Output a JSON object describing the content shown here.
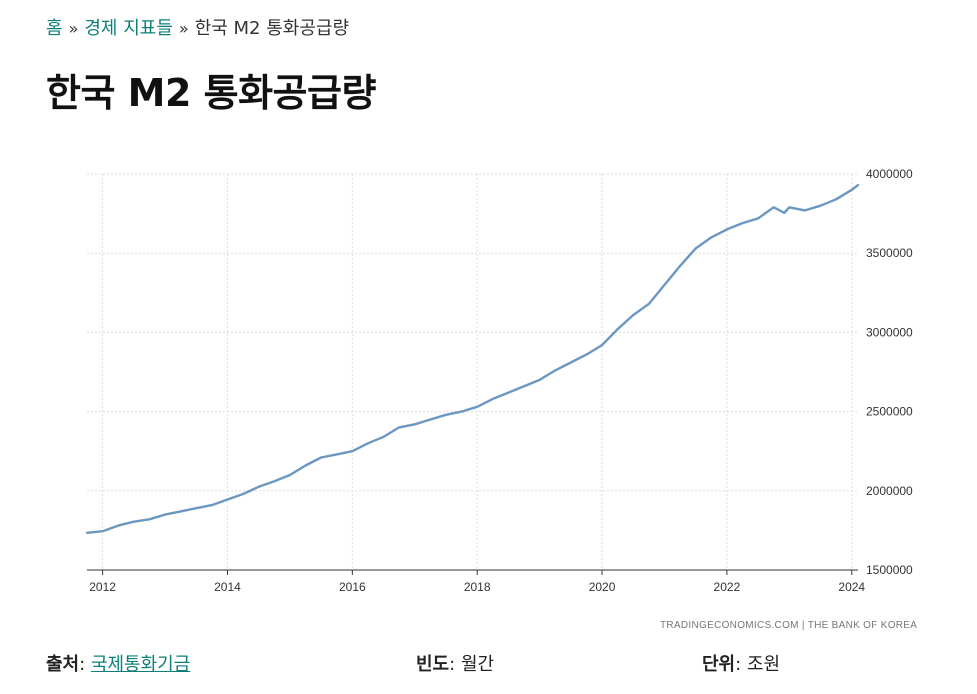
{
  "breadcrumb": {
    "home": "홈",
    "separator": "»",
    "category": "경제 지표들",
    "current": "한국 M2 통화공급량"
  },
  "page_title": "한국 M2 통화공급량",
  "credit": {
    "provider": "TRADINGECONOMICS.COM",
    "divider": "|",
    "source": "THE BANK OF KOREA"
  },
  "meta": {
    "source_label": "출처",
    "source_value": "국제통화기금",
    "frequency_label": "빈도",
    "frequency_value": "월간",
    "unit_label": "단위",
    "unit_value": "조원",
    "colon": ":"
  },
  "colors": {
    "line": "#6b97c0",
    "grid": "#dddddd",
    "link": "#0d7f78"
  },
  "chart_data": {
    "type": "line",
    "title": "",
    "xlabel": "",
    "ylabel": "",
    "grid": true,
    "y_axis_side": "right",
    "xlim": [
      2011.75,
      2024.1
    ],
    "ylim": [
      1500000,
      4000000
    ],
    "x_ticks": [
      {
        "value": 2012,
        "label": "2012"
      },
      {
        "value": 2014,
        "label": "2014"
      },
      {
        "value": 2016,
        "label": "2016"
      },
      {
        "value": 2018,
        "label": "2018"
      },
      {
        "value": 2020,
        "label": "2020"
      },
      {
        "value": 2022,
        "label": "2022"
      },
      {
        "value": 2024,
        "label": "2024"
      }
    ],
    "y_ticks": [
      {
        "value": 1500000,
        "label": "1500000"
      },
      {
        "value": 2000000,
        "label": "2000000"
      },
      {
        "value": 2500000,
        "label": "2500000"
      },
      {
        "value": 3000000,
        "label": "3000000"
      },
      {
        "value": 3500000,
        "label": "3500000"
      },
      {
        "value": 4000000,
        "label": "4000000"
      }
    ],
    "series": [
      {
        "x": [
          2011.75,
          2012.0,
          2012.25,
          2012.5,
          2012.75,
          2013.0,
          2013.25,
          2013.5,
          2013.75,
          2014.0,
          2014.25,
          2014.5,
          2014.75,
          2015.0,
          2015.25,
          2015.5,
          2015.75,
          2016.0,
          2016.25,
          2016.5,
          2016.75,
          2017.0,
          2017.25,
          2017.5,
          2017.75,
          2018.0,
          2018.25,
          2018.5,
          2018.75,
          2019.0,
          2019.25,
          2019.5,
          2019.75,
          2020.0,
          2020.25,
          2020.5,
          2020.75,
          2021.0,
          2021.25,
          2021.5,
          2021.75,
          2022.0,
          2022.25,
          2022.5,
          2022.75,
          2022.92,
          2023.0,
          2023.25,
          2023.5,
          2023.75,
          2024.0,
          2024.1
        ],
        "values": [
          1735000,
          1745000,
          1780000,
          1805000,
          1820000,
          1850000,
          1870000,
          1890000,
          1910000,
          1945000,
          1980000,
          2025000,
          2060000,
          2100000,
          2160000,
          2210000,
          2230000,
          2250000,
          2300000,
          2340000,
          2400000,
          2420000,
          2450000,
          2480000,
          2500000,
          2530000,
          2580000,
          2620000,
          2660000,
          2700000,
          2760000,
          2810000,
          2860000,
          2920000,
          3020000,
          3110000,
          3180000,
          3300000,
          3420000,
          3530000,
          3600000,
          3650000,
          3690000,
          3720000,
          3790000,
          3755000,
          3790000,
          3770000,
          3800000,
          3840000,
          3900000,
          3930000
        ]
      }
    ]
  }
}
